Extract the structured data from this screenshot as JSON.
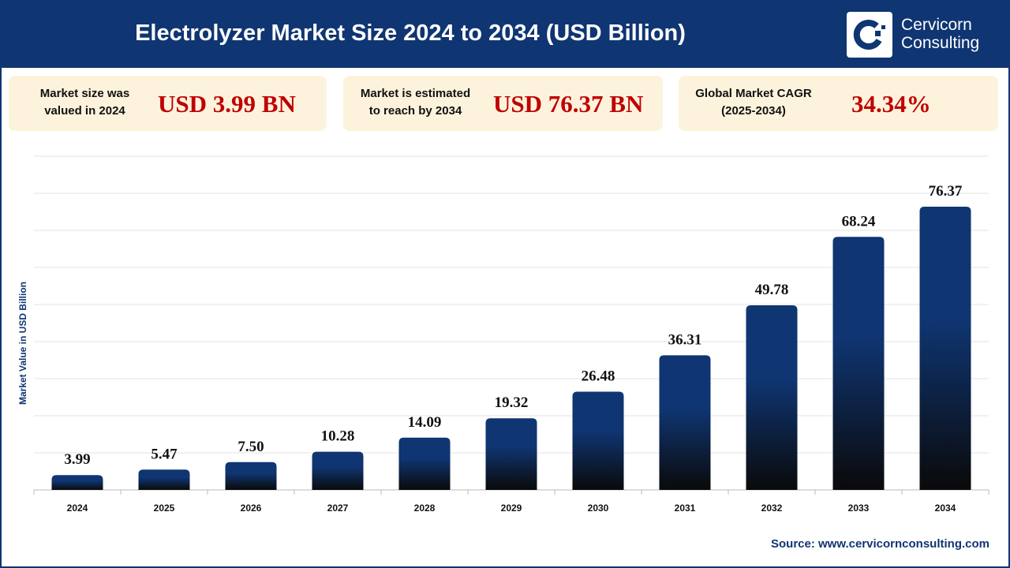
{
  "header": {
    "title": "Electrolyzer Market Size 2024 to 2034 (USD Billion)",
    "logo_text": [
      "Cervicorn",
      "Consulting"
    ]
  },
  "cards": [
    {
      "label": [
        "Market size was",
        "valued in 2024"
      ],
      "value": "USD 3.99 BN"
    },
    {
      "label": [
        "Market is estimated",
        "to reach by 2034"
      ],
      "value": "USD 76.37 BN"
    },
    {
      "label": [
        "Global Market CAGR",
        "(2025-2034)"
      ],
      "value": "34.34%"
    }
  ],
  "source": "Source: www.cervicornconsulting.com",
  "colors": {
    "header": "#0f3572",
    "bar_top": "#0f3572",
    "bar_bottom": "#0a0a0a",
    "card_bg": "#fdf3dd",
    "value_red": "#c00000"
  },
  "chart_data": {
    "type": "bar",
    "title": "",
    "xlabel": "",
    "ylabel": "Market Value in USD Billion",
    "categories": [
      "2024",
      "2025",
      "2026",
      "2027",
      "2028",
      "2029",
      "2030",
      "2031",
      "2032",
      "2033",
      "2034"
    ],
    "values": [
      3.99,
      5.47,
      7.5,
      10.28,
      14.09,
      19.32,
      26.48,
      36.31,
      49.78,
      68.24,
      76.37
    ],
    "data_labels": [
      "3.99",
      "5.47",
      "7.50",
      "10.28",
      "14.09",
      "19.32",
      "26.48",
      "36.31",
      "49.78",
      "68.24",
      "76.37"
    ],
    "ylim": [
      0,
      90
    ],
    "grid": true,
    "y_ticks_shown": false
  }
}
